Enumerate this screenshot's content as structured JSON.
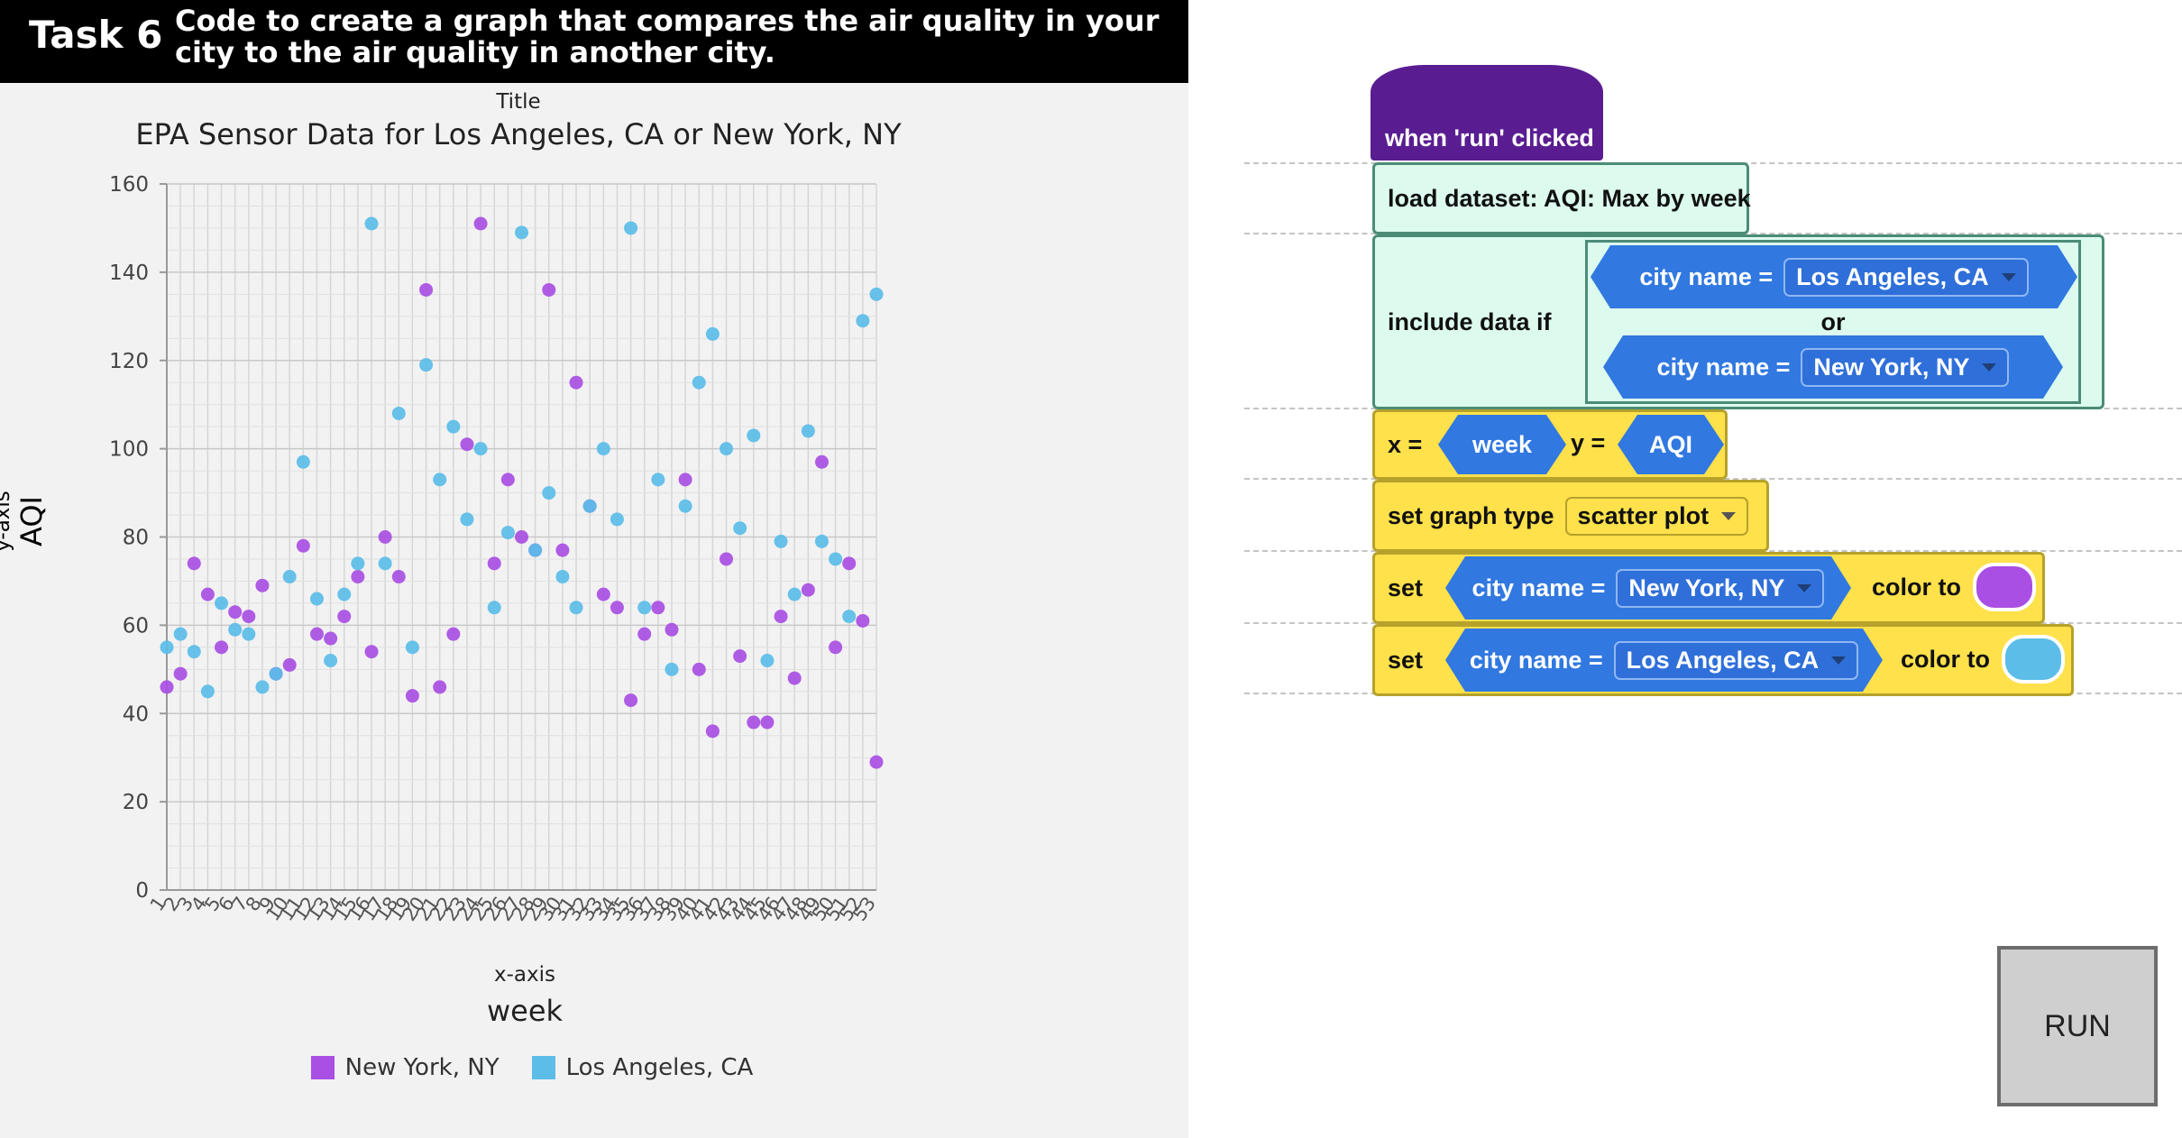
{
  "header": {
    "task": "Task 6",
    "description": "Code to create a graph that compares the air quality in your city to the air quality in another city."
  },
  "chart_data": {
    "type": "scatter",
    "title_caption": "Title",
    "title": "EPA Sensor Data for Los Angeles, CA or New York, NY",
    "ylabel_caption": "y-axis",
    "ylabel": "AQI",
    "xlabel_caption": "x-axis",
    "xlabel": "week",
    "ylim": [
      0,
      160
    ],
    "yticks": [
      0,
      20,
      40,
      60,
      80,
      100,
      120,
      140,
      160
    ],
    "xticks": [
      1,
      2,
      3,
      4,
      5,
      6,
      7,
      8,
      9,
      10,
      11,
      12,
      13,
      14,
      15,
      16,
      17,
      18,
      19,
      20,
      21,
      22,
      23,
      24,
      25,
      26,
      27,
      28,
      29,
      30,
      31,
      32,
      33,
      34,
      35,
      36,
      37,
      38,
      39,
      40,
      41,
      42,
      43,
      44,
      45,
      46,
      47,
      48,
      49,
      50,
      51,
      52,
      53
    ],
    "grid": true,
    "legend_position": "bottom",
    "series": [
      {
        "name": "New York, NY",
        "color": "#a94fe3",
        "points": [
          [
            1,
            46
          ],
          [
            2,
            49
          ],
          [
            3,
            74
          ],
          [
            4,
            67
          ],
          [
            5,
            55
          ],
          [
            6,
            63
          ],
          [
            7,
            62
          ],
          [
            8,
            69
          ],
          [
            9,
            49
          ],
          [
            10,
            51
          ],
          [
            11,
            78
          ],
          [
            12,
            58
          ],
          [
            13,
            57
          ],
          [
            14,
            62
          ],
          [
            15,
            71
          ],
          [
            16,
            54
          ],
          [
            17,
            80
          ],
          [
            18,
            71
          ],
          [
            19,
            44
          ],
          [
            20,
            136
          ],
          [
            21,
            46
          ],
          [
            22,
            58
          ],
          [
            23,
            101
          ],
          [
            24,
            151
          ],
          [
            25,
            74
          ],
          [
            26,
            93
          ],
          [
            27,
            80
          ],
          [
            28,
            77
          ],
          [
            29,
            136
          ],
          [
            30,
            77
          ],
          [
            31,
            115
          ],
          [
            32,
            87
          ],
          [
            33,
            67
          ],
          [
            34,
            64
          ],
          [
            35,
            43
          ],
          [
            36,
            58
          ],
          [
            37,
            64
          ],
          [
            38,
            59
          ],
          [
            39,
            93
          ],
          [
            40,
            50
          ],
          [
            41,
            36
          ],
          [
            42,
            75
          ],
          [
            43,
            53
          ],
          [
            44,
            38
          ],
          [
            45,
            38
          ],
          [
            46,
            62
          ],
          [
            47,
            48
          ],
          [
            48,
            68
          ],
          [
            49,
            97
          ],
          [
            50,
            55
          ],
          [
            51,
            74
          ],
          [
            52,
            61
          ],
          [
            53,
            29
          ]
        ]
      },
      {
        "name": "Los Angeles, CA",
        "color": "#5bbde8",
        "points": [
          [
            1,
            55
          ],
          [
            2,
            58
          ],
          [
            3,
            54
          ],
          [
            4,
            45
          ],
          [
            5,
            65
          ],
          [
            6,
            59
          ],
          [
            7,
            58
          ],
          [
            8,
            46
          ],
          [
            9,
            49
          ],
          [
            10,
            71
          ],
          [
            11,
            97
          ],
          [
            12,
            66
          ],
          [
            13,
            52
          ],
          [
            14,
            67
          ],
          [
            15,
            74
          ],
          [
            16,
            151
          ],
          [
            17,
            74
          ],
          [
            18,
            108
          ],
          [
            19,
            55
          ],
          [
            20,
            119
          ],
          [
            21,
            93
          ],
          [
            22,
            105
          ],
          [
            23,
            84
          ],
          [
            24,
            100
          ],
          [
            25,
            64
          ],
          [
            26,
            81
          ],
          [
            27,
            149
          ],
          [
            28,
            77
          ],
          [
            29,
            90
          ],
          [
            30,
            71
          ],
          [
            31,
            64
          ],
          [
            32,
            87
          ],
          [
            33,
            100
          ],
          [
            34,
            84
          ],
          [
            35,
            150
          ],
          [
            36,
            64
          ],
          [
            37,
            93
          ],
          [
            38,
            50
          ],
          [
            39,
            87
          ],
          [
            40,
            115
          ],
          [
            41,
            126
          ],
          [
            42,
            100
          ],
          [
            43,
            82
          ],
          [
            44,
            103
          ],
          [
            45,
            52
          ],
          [
            46,
            79
          ],
          [
            47,
            67
          ],
          [
            48,
            104
          ],
          [
            49,
            79
          ],
          [
            50,
            75
          ],
          [
            51,
            62
          ],
          [
            52,
            129
          ],
          [
            53,
            135
          ]
        ]
      }
    ]
  },
  "code": {
    "hat_label": "when 'run' clicked",
    "load_label": "load dataset: AQI: Max by week",
    "include_label": "include data if",
    "cond1": {
      "label": "city name =",
      "value": "Los Angeles, CA"
    },
    "or_label": "or",
    "cond2": {
      "label": "city name =",
      "value": "New York, NY"
    },
    "x_label": "x =",
    "x_value": "week",
    "y_label": "y =",
    "y_value": "AQI",
    "graph_type_label": "set graph type",
    "graph_type_value": "scatter plot",
    "set1": {
      "set": "set",
      "label": "city name =",
      "value": "New York, NY",
      "color_to": "color to",
      "color": "#a94fe3"
    },
    "set2": {
      "set": "set",
      "label": "city name =",
      "value": "Los Angeles, CA",
      "color_to": "color to",
      "color": "#5bbde8"
    }
  },
  "run_label": "RUN"
}
